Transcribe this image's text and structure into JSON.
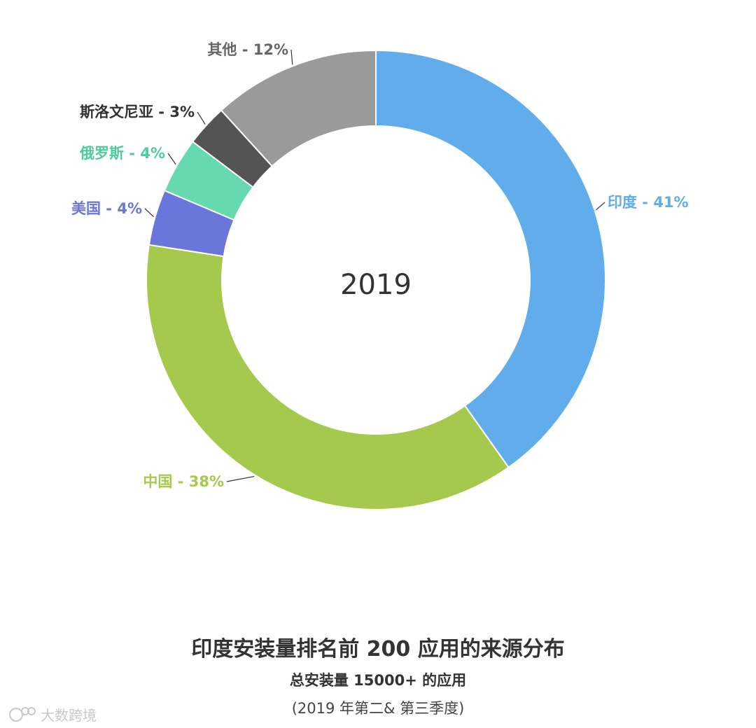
{
  "chart_data": {
    "type": "pie",
    "variant": "donut",
    "center_text": "2019",
    "title": "印度安装量排名前 200 应用的来源分布",
    "subtitle": "总安装量 15000+ 的应用",
    "note": "(2019 年第二& 第三季度)",
    "slices": [
      {
        "name": "印度",
        "value": 41,
        "label": "印度 - 41%",
        "color": "#61ADEB",
        "label_color": "#61ADEB"
      },
      {
        "name": "中国",
        "value": 38,
        "label": "中国 - 38%",
        "color": "#A4C94C",
        "label_color": "#A4C94C"
      },
      {
        "name": "美国",
        "value": 4,
        "label": "美国 - 4%",
        "color": "#6A76D9",
        "label_color": "#6A76D9"
      },
      {
        "name": "俄罗斯",
        "value": 4,
        "label": "俄罗斯 - 4%",
        "color": "#66D9AE",
        "label_color": "#4FCC9C"
      },
      {
        "name": "斯洛文尼亚",
        "value": 3,
        "label": "斯洛文尼亚 - 3%",
        "color": "#545454",
        "label_color": "#333333"
      },
      {
        "name": "其他",
        "value": 12,
        "label": "其他 - 12%",
        "color": "#9A9A9A",
        "label_color": "#666666"
      }
    ]
  },
  "watermark": {
    "text": "大数跨境",
    "icon": "brand-logo-icon"
  }
}
